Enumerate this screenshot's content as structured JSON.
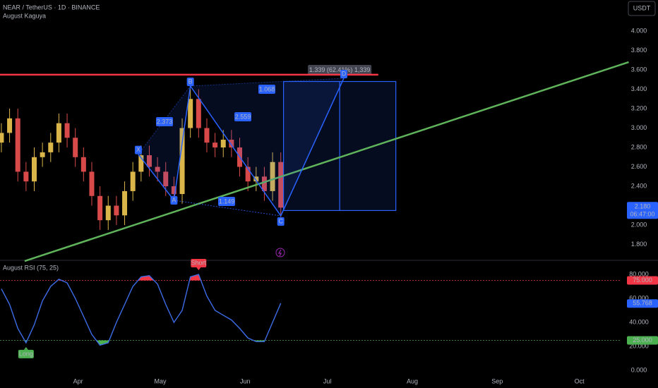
{
  "header": {
    "symbol": "NEAR / TetherUS · 1D · BINANCE",
    "indicator": "August Kaguya",
    "currency": "USDT"
  },
  "chart_data": [
    {
      "type": "candlestick",
      "x": [
        0,
        3,
        6,
        9,
        12,
        15,
        18,
        21,
        24,
        27,
        30,
        33,
        36,
        39,
        42,
        45,
        48,
        51,
        54,
        57,
        60,
        63,
        66,
        69,
        72,
        75,
        78,
        81,
        84,
        87,
        90,
        93,
        96,
        99,
        102
      ],
      "open": [
        2.85,
        2.95,
        3.1,
        2.55,
        2.45,
        2.7,
        2.75,
        2.85,
        3.05,
        2.9,
        2.7,
        2.55,
        2.3,
        2.05,
        2.2,
        2.1,
        2.35,
        2.55,
        2.72,
        2.6,
        2.55,
        2.4,
        2.32,
        3.0,
        3.3,
        3.0,
        2.85,
        2.8,
        2.88,
        2.8,
        2.6,
        2.45,
        2.5,
        2.35,
        2.65
      ],
      "high": [
        3.05,
        3.2,
        3.2,
        2.65,
        2.8,
        2.85,
        2.95,
        3.15,
        3.15,
        3.0,
        2.8,
        2.65,
        2.4,
        2.3,
        2.3,
        2.45,
        2.65,
        2.82,
        2.82,
        2.7,
        2.65,
        2.5,
        3.1,
        3.4,
        3.4,
        3.1,
        2.95,
        2.98,
        2.98,
        2.9,
        2.7,
        2.6,
        2.6,
        2.75,
        2.75
      ],
      "low": [
        2.75,
        2.85,
        2.45,
        2.35,
        2.35,
        2.6,
        2.65,
        2.75,
        2.8,
        2.6,
        2.45,
        2.2,
        1.95,
        1.95,
        2.0,
        2.0,
        2.25,
        2.45,
        2.5,
        2.45,
        2.3,
        2.22,
        2.22,
        2.9,
        2.9,
        2.75,
        2.7,
        2.7,
        2.7,
        2.5,
        2.35,
        2.35,
        2.25,
        2.25,
        2.08
      ],
      "close": [
        2.95,
        3.1,
        2.55,
        2.45,
        2.7,
        2.75,
        2.85,
        3.05,
        2.9,
        2.7,
        2.55,
        2.3,
        2.05,
        2.2,
        2.1,
        2.35,
        2.55,
        2.72,
        2.6,
        2.55,
        2.4,
        2.32,
        3.0,
        3.3,
        3.0,
        2.85,
        2.8,
        2.88,
        2.8,
        2.6,
        2.45,
        2.5,
        2.35,
        2.65,
        2.18
      ],
      "up_color": "#d9b54a",
      "down_color": "#d84a4a",
      "xlim": [
        -0.5,
        226.3
      ],
      "ylim": [
        1.644,
        4.32
      ],
      "yticks": [
        {
          "value": 4,
          "label": "4.000"
        },
        {
          "value": 3.8,
          "label": "3.800"
        },
        {
          "value": 3.6,
          "label": "3.600"
        },
        {
          "value": 3.4,
          "label": "3.400"
        },
        {
          "value": 3.2,
          "label": "3.200"
        },
        {
          "value": 3,
          "label": "3.000"
        },
        {
          "value": 2.8,
          "label": "2.800"
        },
        {
          "value": 2.6,
          "label": "2.600"
        },
        {
          "value": 2.4,
          "label": "2.400"
        },
        {
          "value": 2,
          "label": "2.000"
        },
        {
          "value": 1.8,
          "label": "1.800"
        }
      ],
      "lines": [
        {
          "color": "#f23645",
          "x": [
            -0.5,
            137.6
          ],
          "y": [
            3.55,
            3.55
          ]
        },
        {
          "color": "#5fb35a",
          "x": [
            8.5,
            229
          ],
          "y": [
            1.629,
            3.68
          ]
        }
      ],
      "pattern": {
        "color": "#2962ff",
        "points": [
          {
            "label": "X",
            "x": 50,
            "y": 2.73
          },
          {
            "label": "A",
            "x": 63,
            "y": 2.255
          },
          {
            "label": "B",
            "x": 69,
            "y": 3.433
          },
          {
            "label": "C",
            "x": 102,
            "y": 2.095
          },
          {
            "label": "D",
            "x": 125,
            "y": 3.513
          }
        ],
        "ratios": [
          "2.373",
          "2.559",
          "1.068",
          "1.149"
        ]
      },
      "target": {
        "x": [
          103,
          144
        ],
        "y": [
          2.15,
          3.48
        ],
        "measure_x": 123.5,
        "label": "1.339 (62.41%) 1,339"
      },
      "last_price": {
        "value": 2.18,
        "label": "2.180",
        "countdown": "06:47:00"
      }
    },
    {
      "type": "line",
      "title": "August RSI (75, 25)",
      "x": [
        0,
        3,
        6,
        9,
        12,
        15,
        18,
        21,
        24,
        27,
        30,
        33,
        36,
        39,
        42,
        45,
        48,
        51,
        54,
        57,
        60,
        63,
        66,
        69,
        72,
        75,
        78,
        81,
        84,
        87,
        90,
        93,
        96,
        99,
        102
      ],
      "values": [
        68,
        55,
        35,
        23,
        38,
        58,
        70,
        76,
        73,
        60,
        45,
        30,
        21,
        23,
        40,
        55,
        70,
        78,
        79,
        72,
        55,
        40,
        50,
        78,
        80,
        62,
        50,
        46,
        42,
        35,
        27,
        24,
        24,
        40,
        56
      ],
      "color": "#3d6ce8",
      "xlim": [
        -0.5,
        226.3
      ],
      "ylim": [
        -4.1,
        90
      ],
      "xticks": [
        {
          "value": 28,
          "label": "Apr"
        },
        {
          "value": 58,
          "label": "May"
        },
        {
          "value": 89,
          "label": "Jun"
        },
        {
          "value": 119,
          "label": "Jul"
        },
        {
          "value": 150,
          "label": "Aug"
        },
        {
          "value": 181,
          "label": "Sep"
        },
        {
          "value": 211,
          "label": "Oct"
        }
      ],
      "yticks": [
        {
          "value": 80,
          "label": "80.000"
        },
        {
          "value": 60,
          "label": "60.000"
        },
        {
          "value": 40,
          "label": "40.000"
        },
        {
          "value": 20,
          "label": "20.000"
        },
        {
          "value": 0,
          "label": "0.000"
        }
      ],
      "levels": [
        {
          "value": 75,
          "label": "75.000",
          "color": "#f23645"
        },
        {
          "value": 25,
          "label": "25.000",
          "color": "#4caf50"
        }
      ],
      "last_value": {
        "value": 55.768,
        "label": "55.768"
      },
      "signals": [
        {
          "label": "Long",
          "x": 9,
          "color": "#4caf50"
        },
        {
          "label": "Short",
          "x": 72,
          "color": "#f23645"
        }
      ]
    }
  ]
}
